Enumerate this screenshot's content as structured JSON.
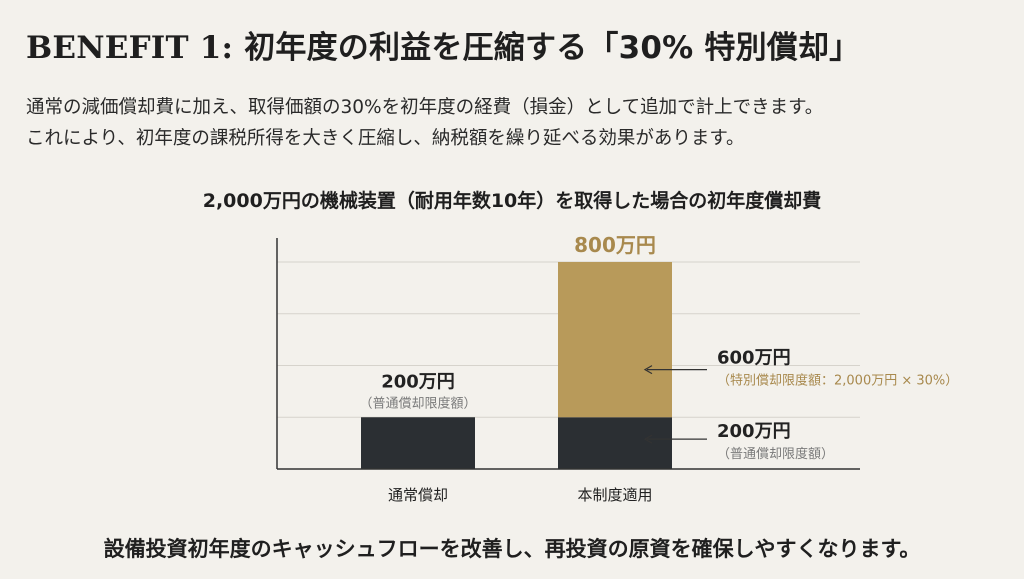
{
  "header": {
    "title_en": "BENEFIT 1:",
    "title_jp": "初年度の利益を圧縮する「30% 特別償却」"
  },
  "description": {
    "line1": "通常の減価償却費に加え、取得価額の30%を初年度の経費（損金）として追加で計上できます。",
    "line2": "これにより、初年度の課税所得を大きく圧縮し、納税額を繰り延べる効果があります。"
  },
  "colors": {
    "dark": "#2b2f33",
    "gold": "#b89a5a",
    "gold_text": "#a8894d",
    "annotation_gray": "#7a7a7a",
    "axis": "#333333",
    "grid": "#d6d3cc"
  },
  "chart_data": {
    "type": "bar",
    "stacked": true,
    "title": "2,000万円の機械装置（耐用年数10年）を取得した場合の初年度償却費",
    "categories": [
      "通常償却",
      "本制度適用"
    ],
    "series": [
      {
        "name": "普通償却限度額",
        "values": [
          200,
          200
        ],
        "color": "#2b2f33"
      },
      {
        "name": "特別償却限度額",
        "values": [
          0,
          600
        ],
        "color": "#b89a5a"
      }
    ],
    "ylim": [
      0,
      900
    ],
    "grid": true,
    "labels": {
      "normal_value": "200万円",
      "normal_note": "（普通償却限度額）",
      "total_value": "800万円",
      "special_value": "600万円",
      "special_note": "（特別償却限度額：2,000万円 × 30%）",
      "base_value": "200万円",
      "base_note": "（普通償却限度額）"
    }
  },
  "footer": {
    "message": "設備投資初年度のキャッシュフローを改善し、再投資の原資を確保しやすくなります。"
  }
}
